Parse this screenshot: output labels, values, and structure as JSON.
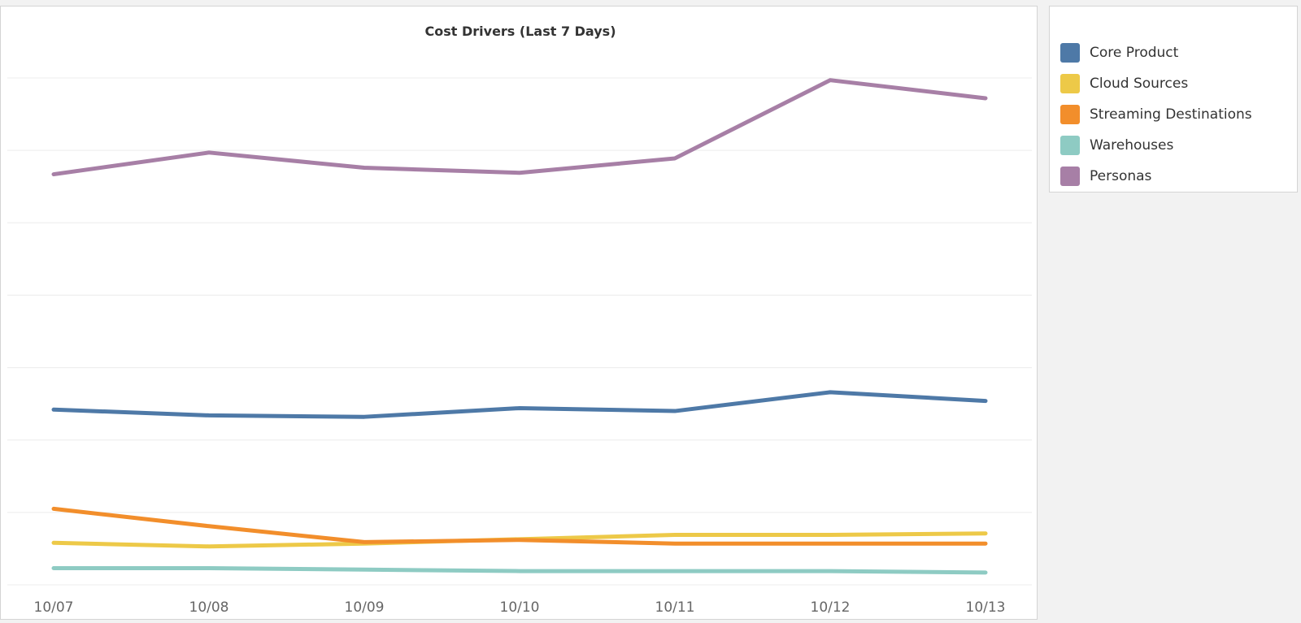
{
  "chart_data": {
    "type": "line",
    "title": "Cost Drivers  (Last 7 Days)",
    "xlabel": "",
    "ylabel": "",
    "categories": [
      "10/07",
      "10/08",
      "10/09",
      "10/10",
      "10/11",
      "10/12",
      "10/13"
    ],
    "ylim": [
      0,
      7
    ],
    "grid": true,
    "legend_position": "right",
    "series": [
      {
        "name": "Core Product",
        "color": "#4e79a7",
        "values": [
          2.42,
          2.34,
          2.32,
          2.44,
          2.4,
          2.66,
          2.54
        ]
      },
      {
        "name": "Cloud Sources",
        "color": "#edc948",
        "values": [
          0.58,
          0.53,
          0.57,
          0.63,
          0.69,
          0.69,
          0.71
        ]
      },
      {
        "name": "Streaming Destinations",
        "color": "#f28e2b",
        "values": [
          1.05,
          0.81,
          0.59,
          0.62,
          0.57,
          0.57,
          0.57
        ]
      },
      {
        "name": "Warehouses",
        "color": "#8ecbc3",
        "values": [
          0.23,
          0.23,
          0.21,
          0.19,
          0.19,
          0.19,
          0.17
        ]
      },
      {
        "name": "Personas",
        "color": "#a77fa6",
        "values": [
          5.67,
          5.97,
          5.76,
          5.69,
          5.89,
          6.97,
          6.72
        ]
      }
    ]
  }
}
